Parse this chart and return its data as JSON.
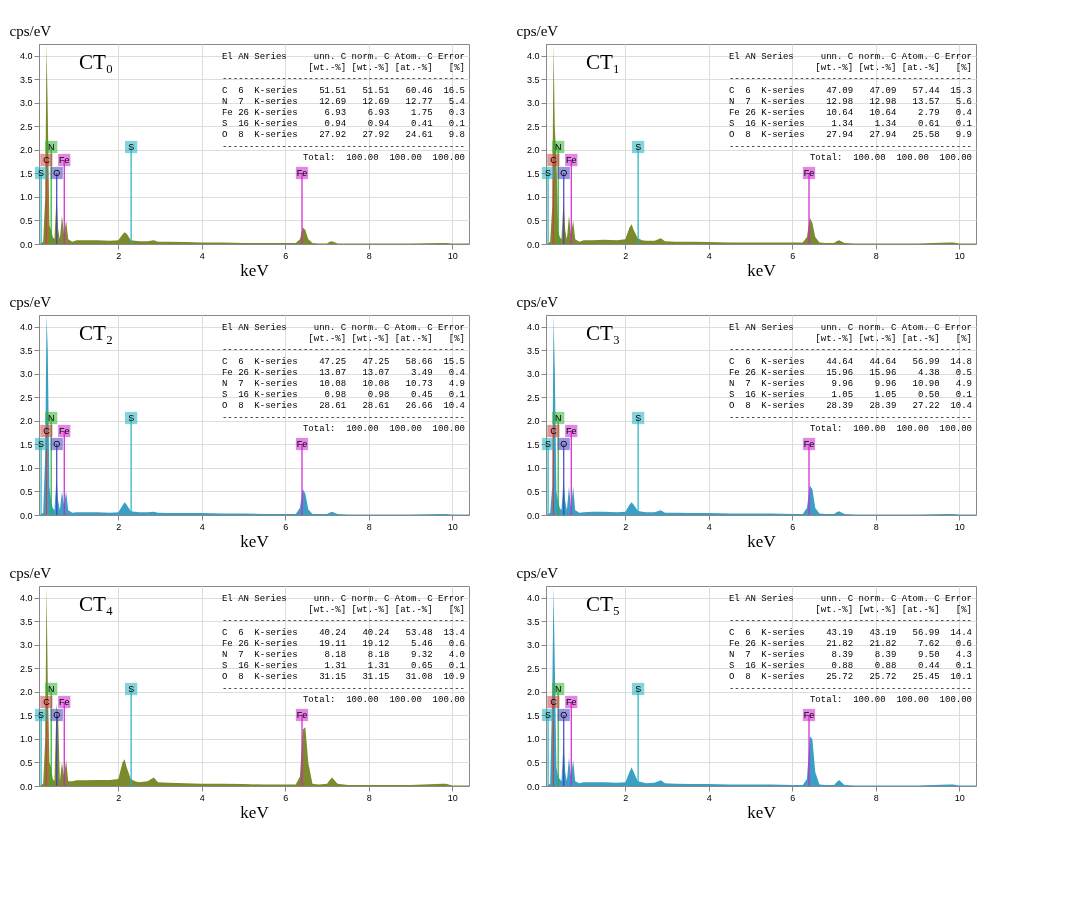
{
  "chart_data": [
    {
      "type": "area",
      "title": "CT₀",
      "xlabel": "keV",
      "ylabel": "cps/eV",
      "xlim": [
        0.1,
        10.4
      ],
      "ylim": [
        0,
        4.25
      ],
      "xticks": [
        2,
        4,
        6,
        8,
        10
      ],
      "yticks": [
        {
          "value": 0,
          "label": "0.0"
        },
        {
          "value": 0.5,
          "label": "0.5"
        },
        {
          "value": 1,
          "label": "1.0"
        },
        {
          "value": 1.5,
          "label": "1.5"
        },
        {
          "value": 2,
          "label": "2.0"
        },
        {
          "value": 2.5,
          "label": "2.5"
        },
        {
          "value": 3,
          "label": "3.0"
        },
        {
          "value": 3.5,
          "label": "3.5"
        },
        {
          "value": 4,
          "label": "4.0"
        }
      ],
      "grid": true,
      "x": [
        0.12,
        0.2,
        0.25,
        0.28,
        0.31,
        0.35,
        0.39,
        0.43,
        0.47,
        0.52,
        0.56,
        0.6,
        0.65,
        0.7,
        0.75,
        0.8,
        0.9,
        1.0,
        1.2,
        1.5,
        1.8,
        2.0,
        2.1,
        2.15,
        2.2,
        2.3,
        2.4,
        2.5,
        2.7,
        2.85,
        2.95,
        3.2,
        3.6,
        4.0,
        4.5,
        5.0,
        5.5,
        6.0,
        6.25,
        6.35,
        6.42,
        6.48,
        6.55,
        6.65,
        6.8,
        7.0,
        7.06,
        7.12,
        7.25,
        7.5,
        8.0,
        9.0,
        9.75,
        9.85,
        10.0,
        10.4
      ],
      "series": [
        {
          "color": "#7a8a2c",
          "values": [
            0,
            0.05,
            1.0,
            4.25,
            2.8,
            0.4,
            0.3,
            0.15,
            0.1,
            1.0,
            0.3,
            0.1,
            0.6,
            0.2,
            0.5,
            0.1,
            0.05,
            0.08,
            0.08,
            0.08,
            0.07,
            0.08,
            0.2,
            0.25,
            0.22,
            0.08,
            0.07,
            0.06,
            0.06,
            0.08,
            0.05,
            0.05,
            0.04,
            0.03,
            0.03,
            0.02,
            0.02,
            0.02,
            0.02,
            0.1,
            0.35,
            0.3,
            0.1,
            0.02,
            0.01,
            0.01,
            0.05,
            0.06,
            0.01,
            0.01,
            0.01,
            0.01,
            0.02,
            0.02,
            0.01,
            0.01
          ]
        }
      ],
      "ref_lines": [
        {
          "axis": "x",
          "value": 0.15,
          "label": "S",
          "color": "#20b0c0"
        },
        {
          "axis": "x",
          "value": 0.277,
          "label": "C",
          "color": "#d04040"
        },
        {
          "axis": "x",
          "value": 0.392,
          "label": "N",
          "color": "#30b030"
        },
        {
          "axis": "x",
          "value": 0.525,
          "label": "O",
          "color": "#4040c0"
        },
        {
          "axis": "x",
          "value": 0.705,
          "label": "Fe",
          "color": "#d020d0"
        },
        {
          "axis": "x",
          "value": 2.307,
          "label": "S",
          "color": "#20b0c0"
        },
        {
          "axis": "x",
          "value": 6.4,
          "label": "Fe",
          "color": "#d020d0"
        }
      ],
      "annotations": [
        "El AN Series     unn. C norm. C Atom. C Error",
        "[wt.-%] [wt.-%] [at.-%]   [%]",
        "---------------------------------------------",
        "C  6  K-series    51.51   51.51   60.46  16.5",
        "N  7  K-series    12.69   12.69   12.77   5.4",
        "Fe 26 K-series     6.93    6.93    1.75   0.3",
        "S  16 K-series     0.94    0.94    0.41   0.1",
        "O  8  K-series    27.92   27.92   24.61   9.8",
        "---------------------------------------------",
        "Total:  100.00  100.00  100.00"
      ]
    },
    {
      "type": "area",
      "title": "CT₁",
      "xlabel": "keV",
      "ylabel": "cps/eV",
      "xlim": [
        0.1,
        10.4
      ],
      "ylim": [
        0,
        4.25
      ],
      "xticks": [
        2,
        4,
        6,
        8,
        10
      ],
      "yticks": [
        {
          "value": 0,
          "label": "0.0"
        },
        {
          "value": 0.5,
          "label": "0.5"
        },
        {
          "value": 1,
          "label": "1.0"
        },
        {
          "value": 1.5,
          "label": "1.5"
        },
        {
          "value": 2,
          "label": "2.0"
        },
        {
          "value": 2.5,
          "label": "2.5"
        },
        {
          "value": 3,
          "label": "3.0"
        },
        {
          "value": 3.5,
          "label": "3.5"
        },
        {
          "value": 4,
          "label": "4.0"
        }
      ],
      "grid": true,
      "x": [
        0.12,
        0.2,
        0.25,
        0.28,
        0.31,
        0.35,
        0.39,
        0.43,
        0.47,
        0.52,
        0.56,
        0.6,
        0.65,
        0.7,
        0.75,
        0.8,
        0.9,
        1.0,
        1.2,
        1.5,
        1.8,
        2.0,
        2.1,
        2.15,
        2.2,
        2.3,
        2.4,
        2.5,
        2.7,
        2.85,
        2.95,
        3.2,
        3.6,
        4.0,
        4.5,
        5.0,
        5.5,
        6.0,
        6.25,
        6.35,
        6.42,
        6.48,
        6.55,
        6.65,
        6.8,
        7.0,
        7.06,
        7.12,
        7.25,
        7.5,
        8.0,
        9.0,
        9.75,
        9.85,
        10.0,
        10.4
      ],
      "series": [
        {
          "color": "#7a8a2c",
          "values": [
            0,
            0.05,
            0.8,
            4.25,
            2.5,
            1.8,
            0.3,
            0.15,
            0.1,
            0.9,
            0.3,
            0.1,
            0.6,
            0.2,
            0.5,
            0.1,
            0.05,
            0.08,
            0.08,
            0.09,
            0.08,
            0.1,
            0.35,
            0.42,
            0.3,
            0.12,
            0.08,
            0.07,
            0.07,
            0.12,
            0.06,
            0.05,
            0.05,
            0.04,
            0.03,
            0.03,
            0.03,
            0.03,
            0.03,
            0.15,
            0.55,
            0.45,
            0.15,
            0.03,
            0.02,
            0.02,
            0.06,
            0.08,
            0.02,
            0.01,
            0.01,
            0.01,
            0.03,
            0.03,
            0.01,
            0.01
          ]
        }
      ],
      "ref_lines": [
        {
          "axis": "x",
          "value": 0.15,
          "label": "S",
          "color": "#20b0c0"
        },
        {
          "axis": "x",
          "value": 0.277,
          "label": "C",
          "color": "#d04040"
        },
        {
          "axis": "x",
          "value": 0.392,
          "label": "N",
          "color": "#30b030"
        },
        {
          "axis": "x",
          "value": 0.525,
          "label": "O",
          "color": "#4040c0"
        },
        {
          "axis": "x",
          "value": 0.705,
          "label": "Fe",
          "color": "#d020d0"
        },
        {
          "axis": "x",
          "value": 2.307,
          "label": "S",
          "color": "#20b0c0"
        },
        {
          "axis": "x",
          "value": 6.4,
          "label": "Fe",
          "color": "#d020d0"
        }
      ],
      "annotations": [
        "El AN Series     unn. C norm. C Atom. C Error",
        "[wt.-%] [wt.-%] [at.-%]   [%]",
        "---------------------------------------------",
        "C  6  K-series    47.09   47.09   57.44  15.3",
        "N  7  K-series    12.98   12.98   13.57   5.6",
        "Fe 26 K-series    10.64   10.64    2.79   0.4",
        "S  16 K-series     1.34    1.34    0.61   0.1",
        "O  8  K-series    27.94   27.94   25.58   9.9",
        "---------------------------------------------",
        "Total:  100.00  100.00  100.00"
      ]
    },
    {
      "type": "area",
      "title": "CT₂",
      "xlabel": "keV",
      "ylabel": "cps/eV",
      "xlim": [
        0.1,
        10.4
      ],
      "ylim": [
        0,
        4.25
      ],
      "xticks": [
        2,
        4,
        6,
        8,
        10
      ],
      "yticks": [
        {
          "value": 0,
          "label": "0.0"
        },
        {
          "value": 0.5,
          "label": "0.5"
        },
        {
          "value": 1,
          "label": "1.0"
        },
        {
          "value": 1.5,
          "label": "1.5"
        },
        {
          "value": 2,
          "label": "2.0"
        },
        {
          "value": 2.5,
          "label": "2.5"
        },
        {
          "value": 3,
          "label": "3.0"
        },
        {
          "value": 3.5,
          "label": "3.5"
        },
        {
          "value": 4,
          "label": "4.0"
        }
      ],
      "grid": true,
      "x": [
        0.12,
        0.2,
        0.25,
        0.28,
        0.31,
        0.35,
        0.39,
        0.43,
        0.47,
        0.52,
        0.56,
        0.6,
        0.65,
        0.7,
        0.75,
        0.8,
        0.9,
        1.0,
        1.2,
        1.5,
        1.8,
        2.0,
        2.1,
        2.15,
        2.2,
        2.3,
        2.4,
        2.5,
        2.7,
        2.85,
        2.95,
        3.2,
        3.6,
        4.0,
        4.5,
        5.0,
        5.5,
        6.0,
        6.25,
        6.35,
        6.42,
        6.48,
        6.55,
        6.65,
        6.8,
        7.0,
        7.06,
        7.12,
        7.25,
        7.5,
        8.0,
        9.0,
        9.75,
        9.85,
        10.0,
        10.4
      ],
      "series": [
        {
          "color": "#3a9fc4",
          "values": [
            0,
            0.05,
            1.3,
            4.25,
            3.5,
            0.6,
            0.3,
            0.15,
            0.1,
            0.8,
            0.3,
            0.1,
            0.5,
            0.2,
            0.5,
            0.1,
            0.05,
            0.06,
            0.06,
            0.06,
            0.05,
            0.06,
            0.2,
            0.27,
            0.22,
            0.08,
            0.07,
            0.06,
            0.06,
            0.07,
            0.05,
            0.04,
            0.04,
            0.04,
            0.03,
            0.03,
            0.02,
            0.02,
            0.02,
            0.15,
            0.55,
            0.45,
            0.12,
            0.02,
            0.02,
            0.02,
            0.05,
            0.07,
            0.02,
            0.01,
            0.01,
            0.01,
            0.02,
            0.02,
            0.01,
            0.01
          ]
        }
      ],
      "ref_lines": [
        {
          "axis": "x",
          "value": 0.15,
          "label": "S",
          "color": "#20b0c0"
        },
        {
          "axis": "x",
          "value": 0.277,
          "label": "C",
          "color": "#d04040"
        },
        {
          "axis": "x",
          "value": 0.392,
          "label": "N",
          "color": "#30b030"
        },
        {
          "axis": "x",
          "value": 0.525,
          "label": "O",
          "color": "#4040c0"
        },
        {
          "axis": "x",
          "value": 0.705,
          "label": "Fe",
          "color": "#d020d0"
        },
        {
          "axis": "x",
          "value": 2.307,
          "label": "S",
          "color": "#20b0c0"
        },
        {
          "axis": "x",
          "value": 6.4,
          "label": "Fe",
          "color": "#d020d0"
        }
      ],
      "annotations": [
        "El AN Series     unn. C norm. C Atom. C Error",
        "[wt.-%] [wt.-%] [at.-%]   [%]",
        "---------------------------------------------",
        "C  6  K-series    47.25   47.25   58.66  15.5",
        "Fe 26 K-series    13.07   13.07    3.49   0.4",
        "N  7  K-series    10.08   10.08   10.73   4.9",
        "S  16 K-series     0.98    0.98    0.45   0.1",
        "O  8  K-series    28.61   28.61   26.66  10.4",
        "---------------------------------------------",
        "Total:  100.00  100.00  100.00"
      ]
    },
    {
      "type": "area",
      "title": "CT₃",
      "xlabel": "keV",
      "ylabel": "cps/eV",
      "xlim": [
        0.1,
        10.4
      ],
      "ylim": [
        0,
        4.25
      ],
      "xticks": [
        2,
        4,
        6,
        8,
        10
      ],
      "yticks": [
        {
          "value": 0,
          "label": "0.0"
        },
        {
          "value": 0.5,
          "label": "0.5"
        },
        {
          "value": 1,
          "label": "1.0"
        },
        {
          "value": 1.5,
          "label": "1.5"
        },
        {
          "value": 2,
          "label": "2.0"
        },
        {
          "value": 2.5,
          "label": "2.5"
        },
        {
          "value": 3,
          "label": "3.0"
        },
        {
          "value": 3.5,
          "label": "3.5"
        },
        {
          "value": 4,
          "label": "4.0"
        }
      ],
      "grid": true,
      "x": [
        0.12,
        0.2,
        0.25,
        0.28,
        0.31,
        0.35,
        0.39,
        0.43,
        0.47,
        0.52,
        0.56,
        0.6,
        0.65,
        0.7,
        0.75,
        0.8,
        0.9,
        1.0,
        1.2,
        1.5,
        1.8,
        2.0,
        2.1,
        2.15,
        2.2,
        2.3,
        2.4,
        2.5,
        2.7,
        2.85,
        2.95,
        3.2,
        3.6,
        4.0,
        4.5,
        5.0,
        5.5,
        6.0,
        6.25,
        6.35,
        6.42,
        6.48,
        6.55,
        6.65,
        6.8,
        7.0,
        7.06,
        7.12,
        7.25,
        7.5,
        8.0,
        9.0,
        9.75,
        9.85,
        10.0,
        10.4
      ],
      "series": [
        {
          "color": "#3a9fc4",
          "values": [
            0,
            0.05,
            0.6,
            4.25,
            3.1,
            0.5,
            0.3,
            0.15,
            0.1,
            0.75,
            0.3,
            0.1,
            0.6,
            0.15,
            0.6,
            0.1,
            0.05,
            0.06,
            0.07,
            0.07,
            0.06,
            0.07,
            0.22,
            0.27,
            0.22,
            0.09,
            0.07,
            0.06,
            0.06,
            0.1,
            0.05,
            0.05,
            0.04,
            0.04,
            0.03,
            0.03,
            0.03,
            0.02,
            0.02,
            0.15,
            0.62,
            0.55,
            0.15,
            0.03,
            0.02,
            0.02,
            0.06,
            0.08,
            0.02,
            0.01,
            0.01,
            0.01,
            0.02,
            0.02,
            0.01,
            0.01
          ]
        }
      ],
      "ref_lines": [
        {
          "axis": "x",
          "value": 0.15,
          "label": "S",
          "color": "#20b0c0"
        },
        {
          "axis": "x",
          "value": 0.277,
          "label": "C",
          "color": "#d04040"
        },
        {
          "axis": "x",
          "value": 0.392,
          "label": "N",
          "color": "#30b030"
        },
        {
          "axis": "x",
          "value": 0.525,
          "label": "O",
          "color": "#4040c0"
        },
        {
          "axis": "x",
          "value": 0.705,
          "label": "Fe",
          "color": "#d020d0"
        },
        {
          "axis": "x",
          "value": 2.307,
          "label": "S",
          "color": "#20b0c0"
        },
        {
          "axis": "x",
          "value": 6.4,
          "label": "Fe",
          "color": "#d020d0"
        }
      ],
      "annotations": [
        "El AN Series     unn. C norm. C Atom. C Error",
        "[wt.-%] [wt.-%] [at.-%]   [%]",
        "---------------------------------------------",
        "C  6  K-series    44.64   44.64   56.99  14.8",
        "Fe 26 K-series    15.96   15.96    4.38   0.5",
        "N  7  K-series     9.96    9.96   10.90   4.9",
        "S  16 K-series     1.05    1.05    0.50   0.1",
        "O  8  K-series    28.39   28.39   27.22  10.4",
        "---------------------------------------------",
        "Total:  100.00  100.00  100.00"
      ]
    },
    {
      "type": "area",
      "title": "CT₄",
      "xlabel": "keV",
      "ylabel": "cps/eV",
      "xlim": [
        0.1,
        10.4
      ],
      "ylim": [
        0,
        4.25
      ],
      "xticks": [
        2,
        4,
        6,
        8,
        10
      ],
      "yticks": [
        {
          "value": 0,
          "label": "0.0"
        },
        {
          "value": 0.5,
          "label": "0.5"
        },
        {
          "value": 1,
          "label": "1.0"
        },
        {
          "value": 1.5,
          "label": "1.5"
        },
        {
          "value": 2,
          "label": "2.0"
        },
        {
          "value": 2.5,
          "label": "2.5"
        },
        {
          "value": 3,
          "label": "3.0"
        },
        {
          "value": 3.5,
          "label": "3.5"
        },
        {
          "value": 4,
          "label": "4.0"
        }
      ],
      "grid": true,
      "x": [
        0.12,
        0.2,
        0.25,
        0.28,
        0.31,
        0.35,
        0.39,
        0.43,
        0.47,
        0.52,
        0.56,
        0.6,
        0.65,
        0.7,
        0.75,
        0.8,
        0.9,
        1.0,
        1.2,
        1.5,
        1.8,
        2.0,
        2.1,
        2.15,
        2.2,
        2.3,
        2.4,
        2.5,
        2.7,
        2.85,
        2.95,
        3.2,
        3.6,
        4.0,
        4.5,
        5.0,
        5.5,
        6.0,
        6.25,
        6.35,
        6.42,
        6.48,
        6.55,
        6.65,
        6.8,
        7.0,
        7.06,
        7.12,
        7.25,
        7.5,
        8.0,
        9.0,
        9.75,
        9.85,
        10.0,
        10.4
      ],
      "series": [
        {
          "color": "#7a8a2c",
          "values": [
            0,
            0.05,
            1.0,
            4.25,
            2.2,
            0.5,
            0.4,
            0.15,
            0.1,
            1.75,
            1.4,
            0.1,
            0.5,
            0.2,
            0.55,
            0.1,
            0.1,
            0.12,
            0.12,
            0.13,
            0.13,
            0.15,
            0.5,
            0.57,
            0.4,
            0.15,
            0.1,
            0.08,
            0.1,
            0.18,
            0.08,
            0.07,
            0.06,
            0.05,
            0.05,
            0.04,
            0.03,
            0.03,
            0.03,
            0.2,
            1.2,
            1.25,
            0.5,
            0.05,
            0.03,
            0.05,
            0.12,
            0.18,
            0.05,
            0.02,
            0.02,
            0.02,
            0.05,
            0.05,
            0.01,
            0.01
          ]
        }
      ],
      "ref_lines": [
        {
          "axis": "x",
          "value": 0.15,
          "label": "S",
          "color": "#20b0c0"
        },
        {
          "axis": "x",
          "value": 0.277,
          "label": "C",
          "color": "#d04040"
        },
        {
          "axis": "x",
          "value": 0.392,
          "label": "N",
          "color": "#30b030"
        },
        {
          "axis": "x",
          "value": 0.525,
          "label": "O",
          "color": "#4040c0"
        },
        {
          "axis": "x",
          "value": 0.705,
          "label": "Fe",
          "color": "#d020d0"
        },
        {
          "axis": "x",
          "value": 2.307,
          "label": "S",
          "color": "#20b0c0"
        },
        {
          "axis": "x",
          "value": 6.4,
          "label": "Fe",
          "color": "#d020d0"
        }
      ],
      "annotations": [
        "El AN Series     unn. C norm. C Atom. C Error",
        "[wt.-%] [wt.-%] [at.-%]   [%]",
        "---------------------------------------------",
        "C  6  K-series    40.24   40.24   53.48  13.4",
        "Fe 26 K-series    19.11   19.12    5.46   0.6",
        "N  7  K-series     8.18    8.18    9.32   4.0",
        "S  16 K-series     1.31    1.31    0.65   0.1",
        "O  8  K-series    31.15   31.15   31.08  10.9",
        "---------------------------------------------",
        "Total:  100.00  100.00  100.00"
      ]
    },
    {
      "type": "area",
      "title": "CT₅",
      "xlabel": "keV",
      "ylabel": "cps/eV",
      "xlim": [
        0.1,
        10.4
      ],
      "ylim": [
        0,
        4.25
      ],
      "xticks": [
        2,
        4,
        6,
        8,
        10
      ],
      "yticks": [
        {
          "value": 0,
          "label": "0.0"
        },
        {
          "value": 0.5,
          "label": "0.5"
        },
        {
          "value": 1,
          "label": "1.0"
        },
        {
          "value": 1.5,
          "label": "1.5"
        },
        {
          "value": 2,
          "label": "2.0"
        },
        {
          "value": 2.5,
          "label": "2.5"
        },
        {
          "value": 3,
          "label": "3.0"
        },
        {
          "value": 3.5,
          "label": "3.5"
        },
        {
          "value": 4,
          "label": "4.0"
        }
      ],
      "grid": true,
      "x": [
        0.12,
        0.2,
        0.25,
        0.28,
        0.31,
        0.35,
        0.39,
        0.43,
        0.47,
        0.52,
        0.56,
        0.6,
        0.65,
        0.7,
        0.75,
        0.8,
        0.9,
        1.0,
        1.2,
        1.5,
        1.8,
        2.0,
        2.1,
        2.15,
        2.2,
        2.3,
        2.4,
        2.5,
        2.7,
        2.85,
        2.95,
        3.2,
        3.6,
        4.0,
        4.5,
        5.0,
        5.5,
        6.0,
        6.25,
        6.35,
        6.42,
        6.48,
        6.55,
        6.65,
        6.8,
        7.0,
        7.06,
        7.12,
        7.25,
        7.5,
        8.0,
        9.0,
        9.75,
        9.85,
        10.0,
        10.4
      ],
      "series": [
        {
          "color": "#3a9fc4",
          "values": [
            0,
            0.05,
            2.0,
            4.25,
            2.6,
            0.4,
            0.2,
            0.15,
            0.1,
            0.9,
            0.3,
            0.1,
            0.6,
            0.2,
            0.55,
            0.1,
            0.06,
            0.08,
            0.08,
            0.08,
            0.07,
            0.08,
            0.3,
            0.4,
            0.3,
            0.1,
            0.08,
            0.06,
            0.07,
            0.12,
            0.06,
            0.05,
            0.04,
            0.04,
            0.03,
            0.03,
            0.03,
            0.02,
            0.02,
            0.15,
            1.05,
            1.0,
            0.3,
            0.03,
            0.02,
            0.02,
            0.08,
            0.13,
            0.02,
            0.01,
            0.01,
            0.01,
            0.03,
            0.03,
            0.01,
            0.01
          ]
        }
      ],
      "ref_lines": [
        {
          "axis": "x",
          "value": 0.15,
          "label": "S",
          "color": "#20b0c0"
        },
        {
          "axis": "x",
          "value": 0.277,
          "label": "C",
          "color": "#d04040"
        },
        {
          "axis": "x",
          "value": 0.392,
          "label": "N",
          "color": "#30b030"
        },
        {
          "axis": "x",
          "value": 0.525,
          "label": "O",
          "color": "#4040c0"
        },
        {
          "axis": "x",
          "value": 0.705,
          "label": "Fe",
          "color": "#d020d0"
        },
        {
          "axis": "x",
          "value": 2.307,
          "label": "S",
          "color": "#20b0c0"
        },
        {
          "axis": "x",
          "value": 6.4,
          "label": "Fe",
          "color": "#d020d0"
        }
      ],
      "annotations": [
        "El AN Series     unn. C norm. C Atom. C Error",
        "[wt.-%] [wt.-%] [at.-%]   [%]",
        "---------------------------------------------",
        "C  6  K-series    43.19   43.19   56.99  14.4",
        "Fe 26 K-series    21.82   21.82    7.62   0.6",
        "N  7  K-series     8.39    8.39    9.50   4.3",
        "S  16 K-series     0.88    0.88    0.44   0.1",
        "O  8  K-series    25.72   25.72   25.45  10.1",
        "---------------------------------------------",
        "Total:  100.00  100.00  100.00"
      ]
    }
  ]
}
